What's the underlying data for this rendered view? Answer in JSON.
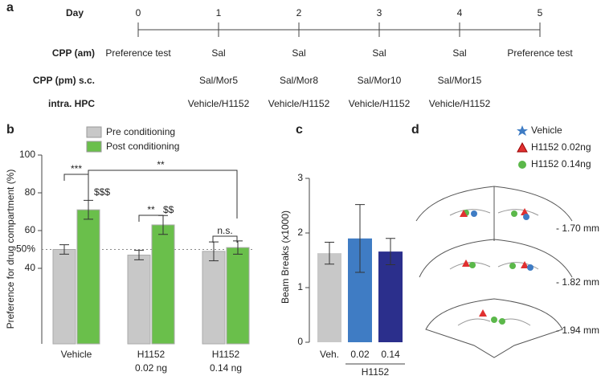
{
  "timeline": {
    "label": "a",
    "day_label": "Day",
    "days": [
      0,
      1,
      2,
      3,
      4,
      5
    ],
    "rows": [
      {
        "label": "CPP (am)",
        "cells": [
          "Preference test",
          "Sal",
          "Sal",
          "Sal",
          "Sal",
          "Preference test"
        ]
      },
      {
        "label": "CPP (pm) s.c.",
        "cells": [
          null,
          "Sal/Mor5",
          "Sal/Mor8",
          "Sal/Mor10",
          "Sal/Mor15",
          null
        ]
      },
      {
        "label": "intra. HPC",
        "cells": [
          null,
          "Vehicle/H1152",
          "Vehicle/H1152",
          "Vehicle/H1152",
          "Vehicle/H1152",
          null
        ]
      }
    ]
  },
  "chart_data": [
    {
      "type": "bar",
      "panel": "b",
      "y_label": "Preference for drug compartment (%)",
      "categories": [
        [
          "Vehicle"
        ],
        [
          "H1152",
          "0.02 ng"
        ],
        [
          "H1152",
          "0.14 ng"
        ]
      ],
      "series": [
        {
          "name": "Pre conditioning",
          "color": "#c8c8c8",
          "values": [
            50,
            47,
            49
          ],
          "errors": [
            2.5,
            2.5,
            5
          ]
        },
        {
          "name": "Post conditioning",
          "color": "#6abf4b",
          "values": [
            71,
            63,
            51
          ],
          "errors": [
            5,
            5,
            3.5
          ]
        }
      ],
      "ylim": [
        0,
        100
      ],
      "yticks": [
        40,
        60,
        80,
        100
      ],
      "reference_line": {
        "value": 50,
        "label": "50%"
      },
      "annotations": [
        "***",
        "**",
        "n.s.",
        "**",
        "$$$",
        "$$"
      ],
      "legend": "top"
    },
    {
      "type": "bar",
      "panel": "c",
      "y_label": "Beam Breaks (x1000)",
      "categories": [
        "Veh.",
        "0.02",
        "0.14"
      ],
      "group_label": "H1152",
      "values": [
        1.63,
        1.9,
        1.66
      ],
      "errors": [
        0.2,
        0.62,
        0.24
      ],
      "colors": [
        "#c8c8c8",
        "#3f7cc4",
        "#2b2f8c"
      ],
      "ylim": [
        0,
        3
      ],
      "yticks": [
        0,
        1,
        2,
        3
      ]
    }
  ],
  "anatomy": {
    "label": "d",
    "legend": [
      "Vehicle",
      "H1152 0.02ng",
      "H1152 0.14ng"
    ],
    "sections": [
      "- 1.70 mm",
      "- 1.82 mm",
      "- 1.94 mm"
    ]
  }
}
